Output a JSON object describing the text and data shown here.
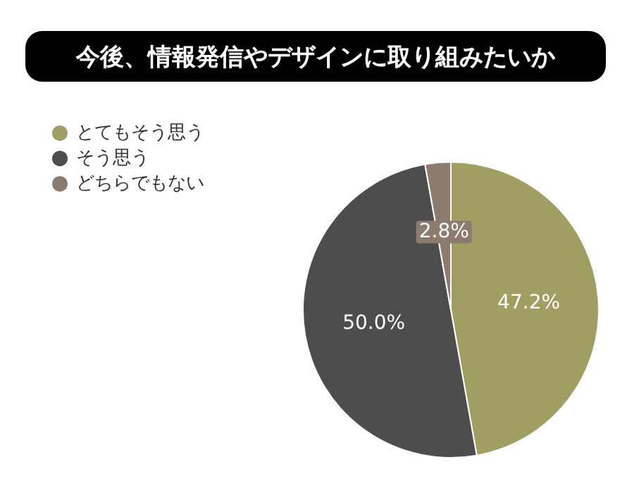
{
  "chart_data": {
    "type": "pie",
    "title": "今後、情報発信やデザインに取り組みたいか",
    "categories": [
      "とてもそう思う",
      "そう思う",
      "どちらでもない"
    ],
    "values": [
      47.2,
      50.0,
      2.8
    ],
    "colors": [
      "#a19e63",
      "#4d4d4d",
      "#8c7b6f"
    ],
    "value_labels": [
      "47.2%",
      "50.0%",
      "2.8%"
    ],
    "legend": "top left"
  }
}
